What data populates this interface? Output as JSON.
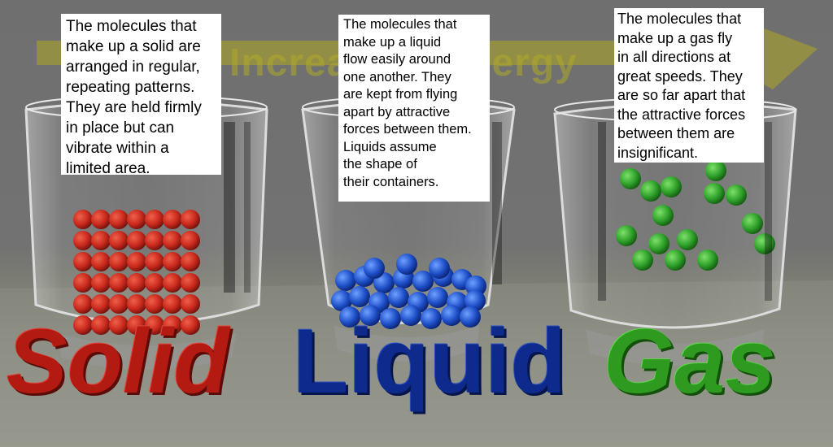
{
  "banner": {
    "text": "Increasing energy",
    "color": "#b0aa28"
  },
  "captions": {
    "solid": "The molecules that\nmake up a solid are\narranged in regular,\nrepeating patterns.\nThey are held firmly\nin place but can\nvibrate within a\nlimited area.",
    "liquid": "The molecules that\nmake up a liquid\nflow easily around\none another. They\nare kept from flying\napart by attractive\nforces between them.\nLiquids assume\nthe shape of\ntheir containers.",
    "gas": "The molecules that\nmake up a gas fly\nin all directions at\ngreat speeds. They\nare so far apart that\nthe attractive forces\nbetween them are\ninsignificant."
  },
  "labels": {
    "solid": "Solid",
    "liquid": "Liquid",
    "gas": "Gas"
  },
  "colors": {
    "solid": "#c8281c",
    "liquid": "#1e4fc8",
    "gas": "#2ea02a",
    "glass": "#d8d8d8"
  }
}
